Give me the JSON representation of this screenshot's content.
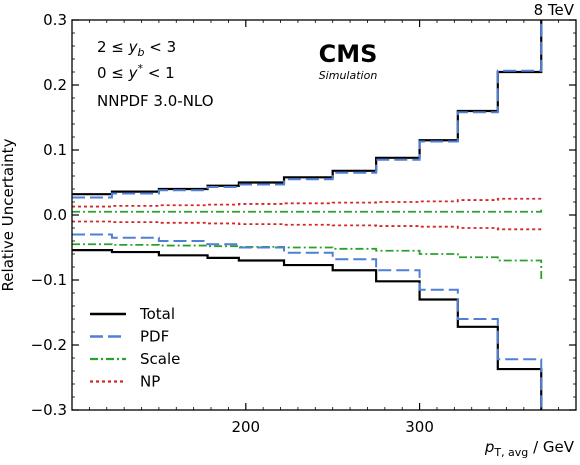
{
  "chart_data": {
    "type": "line",
    "energy_label": "8 TeV",
    "logo": "CMS",
    "logo_sub": "Simulation",
    "annotations": [
      "2 ≤ y_b < 3",
      "0 ≤ y* < 1",
      "NNPDF 3.0-NLO"
    ],
    "xlabel": "p_T,avg / GeV",
    "ylabel": "Relative Uncertainty",
    "xlim": [
      100,
      390
    ],
    "ylim": [
      -0.3,
      0.3
    ],
    "xticks": [
      200,
      300
    ],
    "yticks": [
      -0.3,
      -0.2,
      -0.1,
      0.0,
      0.1,
      0.2,
      0.3
    ],
    "ytick_labels": [
      "−0.3",
      "−0.2",
      "−0.1",
      "0.0",
      "0.1",
      "0.2",
      "0.3"
    ],
    "legend_position": "lower-left",
    "bin_edges": [
      100,
      123,
      150,
      178,
      196,
      222,
      250,
      275,
      300,
      322,
      345,
      370
    ],
    "series": [
      {
        "name": "Total",
        "color": "#000000",
        "style": "solid",
        "upper": [
          0.032,
          0.036,
          0.04,
          0.045,
          0.05,
          0.058,
          0.068,
          0.088,
          0.115,
          0.16,
          0.22,
          0.4
        ],
        "lower": [
          -0.054,
          -0.057,
          -0.062,
          -0.066,
          -0.07,
          -0.077,
          -0.085,
          -0.102,
          -0.13,
          -0.172,
          -0.237,
          -0.4
        ]
      },
      {
        "name": "PDF",
        "color": "#4f7fd6",
        "style": "dashed",
        "upper": [
          0.027,
          0.033,
          0.038,
          0.043,
          0.047,
          0.055,
          0.065,
          0.085,
          0.113,
          0.158,
          0.222,
          0.4
        ],
        "lower": [
          -0.03,
          -0.035,
          -0.04,
          -0.045,
          -0.05,
          -0.058,
          -0.068,
          -0.085,
          -0.115,
          -0.16,
          -0.222,
          -0.4
        ]
      },
      {
        "name": "Scale",
        "color": "#2ca02c",
        "style": "dashdot",
        "upper": [
          0.005,
          0.005,
          0.005,
          0.005,
          0.005,
          0.005,
          0.005,
          0.005,
          0.005,
          0.005,
          0.005,
          0.008
        ],
        "lower": [
          -0.045,
          -0.046,
          -0.047,
          -0.048,
          -0.049,
          -0.05,
          -0.052,
          -0.055,
          -0.06,
          -0.065,
          -0.07,
          -0.1
        ]
      },
      {
        "name": "NP",
        "color": "#d62728",
        "style": "dotted",
        "upper": [
          0.013,
          0.014,
          0.015,
          0.016,
          0.017,
          0.018,
          0.019,
          0.02,
          0.021,
          0.023,
          0.025,
          0.028
        ],
        "lower": [
          -0.01,
          -0.011,
          -0.012,
          -0.013,
          -0.014,
          -0.015,
          -0.016,
          -0.017,
          -0.018,
          -0.02,
          -0.022,
          -0.026
        ]
      }
    ]
  }
}
